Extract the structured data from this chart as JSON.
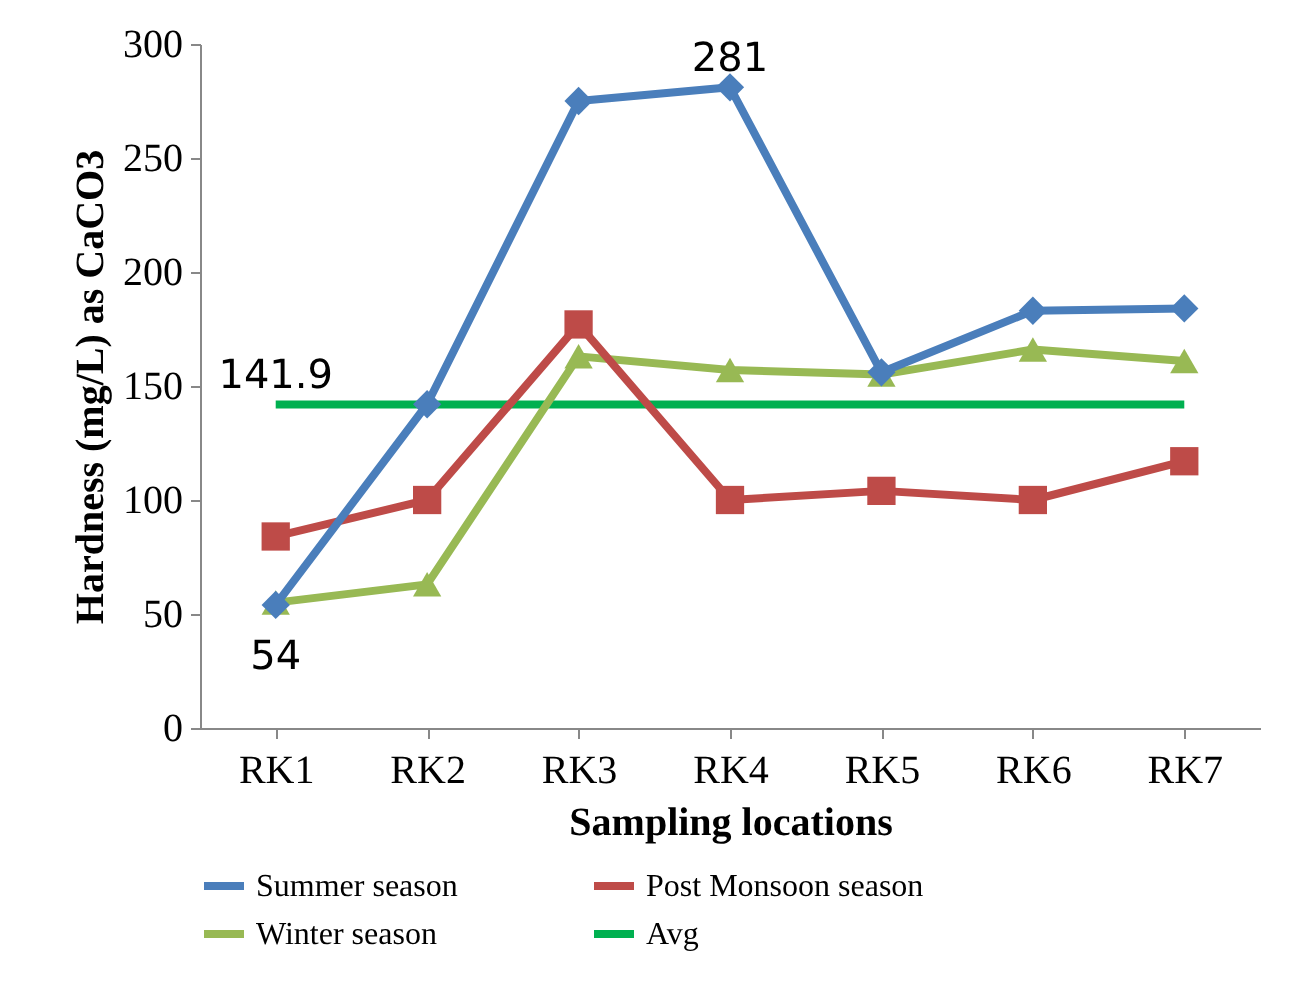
{
  "chart_data": {
    "type": "line",
    "xlabel": "Sampling  locations",
    "ylabel": "Hardness  (mg/L) as CaCO3",
    "categories": [
      "RK1",
      "RK2",
      "RK3",
      "RK4",
      "RK5",
      "RK6",
      "RK7"
    ],
    "series": [
      {
        "name": "Summer season",
        "color": "#4a7ebb",
        "marker": "diamond",
        "values": [
          54,
          142,
          275,
          281,
          156,
          183,
          184
        ]
      },
      {
        "name": "Post Monsoon season",
        "color": "#be4b48",
        "marker": "square",
        "values": [
          84,
          100,
          177,
          100,
          104,
          100,
          117
        ]
      },
      {
        "name": "Winter season",
        "color": "#98b954",
        "marker": "triangle",
        "values": [
          55,
          63,
          163,
          157,
          155,
          166,
          161
        ]
      },
      {
        "name": "Avg",
        "color": "#00b050",
        "marker": "none",
        "values": [
          141.9,
          141.9,
          141.9,
          141.9,
          141.9,
          141.9,
          141.9
        ]
      }
    ],
    "annotations": [
      {
        "text": "281",
        "x": "RK4",
        "y": 281
      },
      {
        "text": "54",
        "x": "RK1",
        "y": 54
      },
      {
        "text": "141.9",
        "x": "RK1",
        "y": 141.9
      }
    ],
    "ylim": [
      0,
      300
    ],
    "yticks": [
      0,
      50,
      100,
      150,
      200,
      250,
      300
    ],
    "grid": false,
    "legend": "bottom"
  }
}
